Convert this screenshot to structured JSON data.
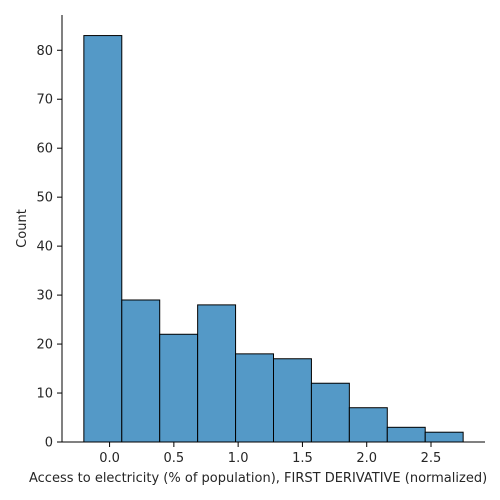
{
  "chart_data": {
    "type": "bar",
    "subtype": "histogram",
    "xlabel": "Access to electricity (% of population), FIRST DERIVATIVE (normalized)",
    "ylabel": "Count",
    "bin_edges": [
      -0.2,
      0.095,
      0.39,
      0.685,
      0.98,
      1.275,
      1.57,
      1.865,
      2.16,
      2.455,
      2.75
    ],
    "values": [
      83,
      29,
      22,
      28,
      18,
      17,
      12,
      7,
      3,
      2
    ],
    "xlim": [
      -0.37,
      2.92
    ],
    "ylim": [
      0,
      87.2
    ],
    "x_ticks": [
      0.0,
      0.5,
      1.0,
      1.5,
      2.0,
      2.5
    ],
    "x_tick_labels": [
      "0.0",
      "0.5",
      "1.0",
      "1.5",
      "2.0",
      "2.5"
    ],
    "y_ticks": [
      0,
      10,
      20,
      30,
      40,
      50,
      60,
      70,
      80
    ],
    "y_tick_labels": [
      "0",
      "10",
      "20",
      "30",
      "40",
      "50",
      "60",
      "70",
      "80"
    ],
    "bar_color": "#5499c7",
    "edge_color": "#000000",
    "grid": false,
    "spines": "left-bottom"
  }
}
